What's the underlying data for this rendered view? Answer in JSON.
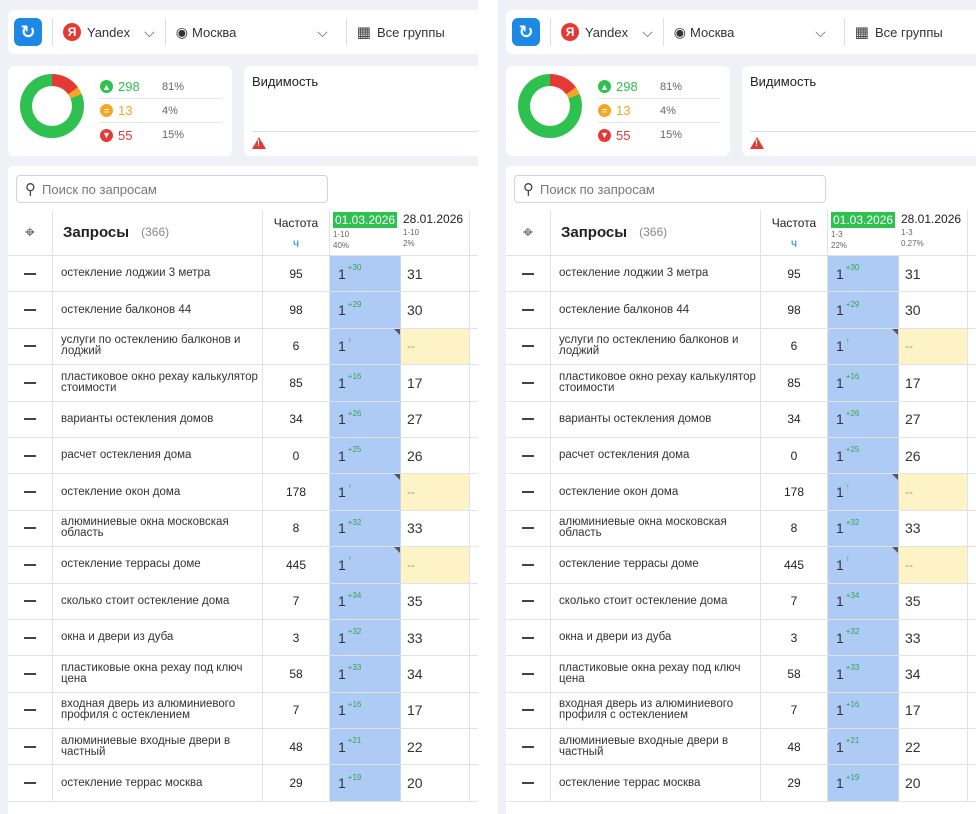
{
  "panels": [
    {
      "topbar": {
        "engine": "Yandex",
        "engine_badge": "Я",
        "region": "Москва",
        "groups": "Все группы"
      },
      "stats": [
        {
          "count": "298",
          "pct": "81%",
          "color": "#2fc14f",
          "glyph": "▲"
        },
        {
          "count": "13",
          "pct": "4%",
          "color": "#f5a623",
          "glyph": "="
        },
        {
          "count": "55",
          "pct": "15%",
          "color": "#e53935",
          "glyph": "▼"
        }
      ],
      "visibility": {
        "title": "Видимость",
        "plus": "+"
      },
      "search_placeholder": "Поиск по запросам",
      "header": {
        "queries_label": "Запросы",
        "queries_count": "(366)",
        "freq_label": "Частота",
        "freq_unit": "ч",
        "date1": "01.03.2026",
        "date1_range": "1-10",
        "date1_pct": "40%",
        "date2": "28.01.2026",
        "date2_range": "1-10",
        "date2_pct": "2%"
      }
    },
    {
      "topbar": {
        "engine": "Yandex",
        "engine_badge": "Я",
        "region": "Москва",
        "groups": "Все группы"
      },
      "stats": [
        {
          "count": "298",
          "pct": "81%",
          "color": "#2fc14f",
          "glyph": "▲"
        },
        {
          "count": "13",
          "pct": "4%",
          "color": "#f5a623",
          "glyph": "="
        },
        {
          "count": "55",
          "pct": "15%",
          "color": "#e53935",
          "glyph": "▼"
        }
      ],
      "visibility": {
        "title": "Видимость",
        "plus": ""
      },
      "search_placeholder": "Поиск по запросам",
      "header": {
        "queries_label": "Запросы",
        "queries_count": "(366)",
        "freq_label": "Частота",
        "freq_unit": "ч",
        "date1": "01.03.2026",
        "date1_range": "1-3",
        "date1_pct": "22%",
        "date2": "28.01.2026",
        "date2_range": "1-3",
        "date2_pct": "0.27%"
      }
    }
  ],
  "rows": [
    {
      "q": "остекление лоджии 3 метра",
      "freq": "95",
      "pos": "1",
      "delta": "+30",
      "prev": "31"
    },
    {
      "q": "остекление балконов 44",
      "freq": "98",
      "pos": "1",
      "delta": "+29",
      "prev": "30"
    },
    {
      "q": "услуги по остеклению балконов и лоджий",
      "freq": "6",
      "pos": "1",
      "delta": "↑",
      "prev": "--"
    },
    {
      "q": "пластиковое окно рехау калькулятор стоимости",
      "freq": "85",
      "pos": "1",
      "delta": "+16",
      "prev": "17"
    },
    {
      "q": "варианты остекления домов",
      "freq": "34",
      "pos": "1",
      "delta": "+26",
      "prev": "27"
    },
    {
      "q": "расчет остекления дома",
      "freq": "0",
      "pos": "1",
      "delta": "+25",
      "prev": "26"
    },
    {
      "q": "остекление окон дома",
      "freq": "178",
      "pos": "1",
      "delta": "↑",
      "prev": "--"
    },
    {
      "q": "алюминиевые окна московская область",
      "freq": "8",
      "pos": "1",
      "delta": "+32",
      "prev": "33"
    },
    {
      "q": "остекление террасы доме",
      "freq": "445",
      "pos": "1",
      "delta": "↑",
      "prev": "--"
    },
    {
      "q": "сколько стоит остекление дома",
      "freq": "7",
      "pos": "1",
      "delta": "+34",
      "prev": "35"
    },
    {
      "q": "окна и двери из дуба",
      "freq": "3",
      "pos": "1",
      "delta": "+32",
      "prev": "33"
    },
    {
      "q": "пластиковые окна рехау под ключ цена",
      "freq": "58",
      "pos": "1",
      "delta": "+33",
      "prev": "34"
    },
    {
      "q": "входная дверь из алюминиевого профиля с остеклением",
      "freq": "7",
      "pos": "1",
      "delta": "+16",
      "prev": "17"
    },
    {
      "q": "алюминиевые входные двери в частный",
      "freq": "48",
      "pos": "1",
      "delta": "+21",
      "prev": "22"
    },
    {
      "q": "остекление террас москва",
      "freq": "29",
      "pos": "1",
      "delta": "+19",
      "prev": "20"
    }
  ]
}
